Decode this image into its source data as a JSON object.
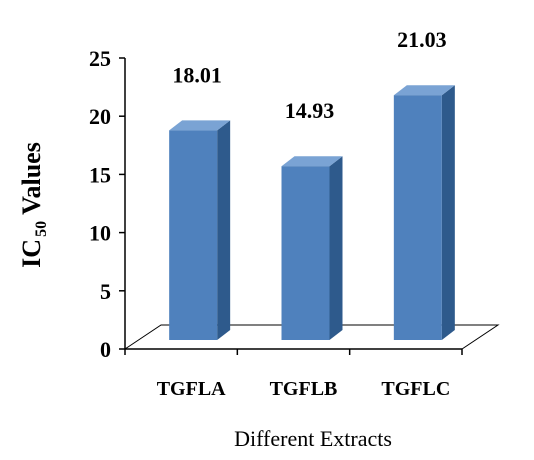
{
  "chart_data": {
    "type": "bar",
    "style": "3d-column",
    "categories": [
      "TGFLA",
      "TGFLB",
      "TGFLC"
    ],
    "values": [
      18.01,
      14.93,
      21.03
    ],
    "data_labels": [
      "18.01",
      "14.93",
      "21.03"
    ],
    "ylabel": {
      "main": "IC",
      "subscript": "50",
      "rest": " Values"
    },
    "xlabel": "Different Extracts",
    "ylim": [
      0,
      25
    ],
    "yticks": [
      "0",
      "5",
      "10",
      "15",
      "20",
      "25"
    ],
    "grid": false,
    "legend": "none",
    "colors": {
      "bar_front": "#4f81bd",
      "bar_side": "#2e5a8c",
      "bar_top": "#7aa3d4",
      "axis": "#000000",
      "floor": "#000000"
    }
  }
}
